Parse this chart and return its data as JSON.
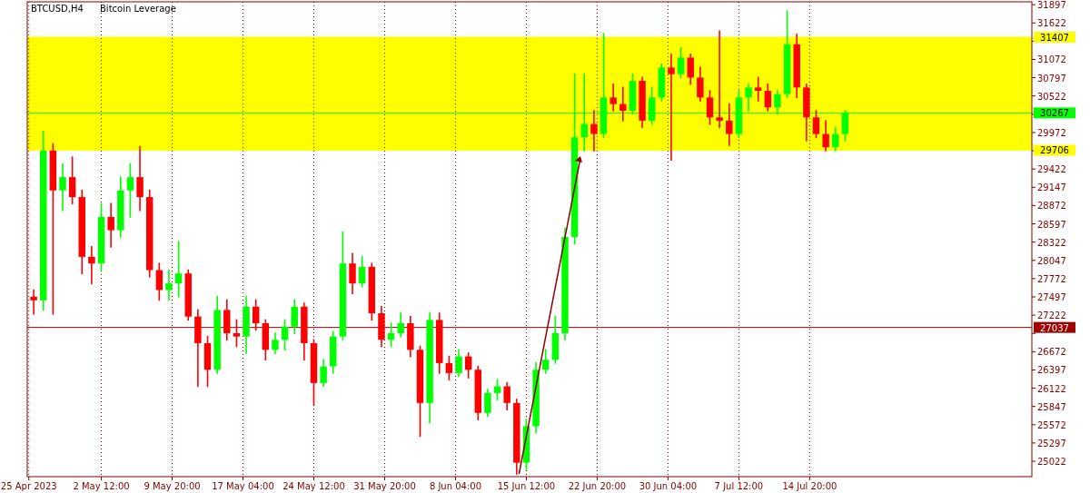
{
  "chart_data": {
    "type": "candlestick",
    "title": "BTCUSD,H4",
    "subtitle": "Bitcoin Leverage",
    "x": [
      "2023-04-25T12:00",
      "2023-04-26T12:00",
      "2023-04-27T12:00",
      "2023-04-28T12:00",
      "2023-04-29T12:00",
      "2023-04-30T12:00",
      "2023-05-01T12:00",
      "2023-05-02T12:00",
      "2023-05-03T12:00",
      "2023-05-04T12:00",
      "2023-05-05T12:00",
      "2023-05-06T12:00",
      "2023-05-07T12:00",
      "2023-05-08T12:00",
      "2023-05-09T12:00",
      "2023-05-10T12:00",
      "2023-05-11T12:00",
      "2023-05-12T12:00",
      "2023-05-13T12:00",
      "2023-05-14T12:00",
      "2023-05-15T12:00",
      "2023-05-16T12:00",
      "2023-05-17T12:00",
      "2023-05-18T12:00",
      "2023-05-19T12:00",
      "2023-05-20T12:00",
      "2023-05-21T12:00",
      "2023-05-22T12:00",
      "2023-05-23T12:00",
      "2023-05-24T12:00",
      "2023-05-25T12:00",
      "2023-05-26T12:00",
      "2023-05-27T12:00",
      "2023-05-28T12:00",
      "2023-05-29T12:00",
      "2023-05-30T12:00",
      "2023-05-31T12:00",
      "2023-06-01T12:00",
      "2023-06-02T12:00",
      "2023-06-03T12:00",
      "2023-06-04T12:00",
      "2023-06-05T12:00",
      "2023-06-06T12:00",
      "2023-06-07T12:00",
      "2023-06-08T12:00",
      "2023-06-09T12:00",
      "2023-06-10T12:00",
      "2023-06-11T12:00",
      "2023-06-12T12:00",
      "2023-06-13T12:00",
      "2023-06-14T12:00",
      "2023-06-15T12:00",
      "2023-06-16T12:00",
      "2023-06-17T12:00",
      "2023-06-18T12:00",
      "2023-06-19T12:00",
      "2023-06-20T12:00",
      "2023-06-21T12:00",
      "2023-06-22T12:00",
      "2023-06-23T12:00",
      "2023-06-24T12:00",
      "2023-06-25T12:00",
      "2023-06-26T12:00",
      "2023-06-27T12:00",
      "2023-06-28T12:00",
      "2023-06-29T12:00",
      "2023-06-30T12:00",
      "2023-07-01T12:00",
      "2023-07-02T12:00",
      "2023-07-03T12:00",
      "2023-07-04T12:00",
      "2023-07-05T12:00",
      "2023-07-06T12:00",
      "2023-07-07T12:00",
      "2023-07-08T12:00",
      "2023-07-09T12:00",
      "2023-07-10T12:00",
      "2023-07-11T12:00",
      "2023-07-12T12:00",
      "2023-07-13T12:00",
      "2023-07-14T12:00",
      "2023-07-15T12:00",
      "2023-07-16T12:00",
      "2023-07-17T12:00",
      "2023-07-18T12:00"
    ],
    "ohlc": [
      [
        27500,
        27600,
        27240,
        27445
      ],
      [
        27445,
        29990,
        27300,
        29700
      ],
      [
        29700,
        29800,
        27240,
        29100
      ],
      [
        29100,
        29500,
        28800,
        29300
      ],
      [
        29300,
        29600,
        28900,
        29000
      ],
      [
        29000,
        29100,
        27850,
        28100
      ],
      [
        28100,
        28250,
        27700,
        28000
      ],
      [
        28000,
        28900,
        27900,
        28700
      ],
      [
        28700,
        28900,
        28250,
        28500
      ],
      [
        28500,
        29300,
        28400,
        29100
      ],
      [
        29100,
        29500,
        28700,
        29300
      ],
      [
        29300,
        29760,
        28800,
        29000
      ],
      [
        29000,
        29100,
        27800,
        27900
      ],
      [
        27900,
        28000,
        27450,
        27600
      ],
      [
        27600,
        27900,
        27450,
        27700
      ],
      [
        27700,
        28330,
        27500,
        27850
      ],
      [
        27850,
        27900,
        27150,
        27200
      ],
      [
        27200,
        27300,
        26150,
        26800
      ],
      [
        26800,
        26900,
        26150,
        26400
      ],
      [
        26400,
        27500,
        26350,
        27300
      ],
      [
        27300,
        27450,
        26850,
        26950
      ],
      [
        26950,
        27150,
        26750,
        26900
      ],
      [
        26900,
        27500,
        26650,
        27350
      ],
      [
        27350,
        27450,
        27000,
        27100
      ],
      [
        27100,
        27150,
        26550,
        26700
      ],
      [
        26700,
        26950,
        26650,
        26850
      ],
      [
        26850,
        27150,
        26700,
        27050
      ],
      [
        27050,
        27450,
        26950,
        27350
      ],
      [
        27350,
        27400,
        26550,
        26800
      ],
      [
        26800,
        26850,
        25880,
        26200
      ],
      [
        26200,
        26550,
        26150,
        26450
      ],
      [
        26450,
        26970,
        26350,
        26900
      ],
      [
        26900,
        28470,
        26850,
        28000
      ],
      [
        28000,
        28150,
        27550,
        27700
      ],
      [
        27700,
        28100,
        27650,
        27950
      ],
      [
        27950,
        28000,
        27150,
        27250
      ],
      [
        27250,
        27350,
        26750,
        26850
      ],
      [
        26850,
        27100,
        26750,
        26950
      ],
      [
        26950,
        27250,
        26900,
        27100
      ],
      [
        27100,
        27200,
        26600,
        26700
      ],
      [
        26700,
        26750,
        25400,
        25900
      ],
      [
        25900,
        27250,
        25600,
        27150
      ],
      [
        27150,
        27250,
        26350,
        26500
      ],
      [
        26500,
        26600,
        26250,
        26350
      ],
      [
        26350,
        26700,
        26300,
        26600
      ],
      [
        26600,
        26650,
        26280,
        26400
      ],
      [
        26400,
        26450,
        25650,
        25750
      ],
      [
        25750,
        26100,
        25700,
        26050
      ],
      [
        26050,
        26250,
        25950,
        26150
      ],
      [
        26150,
        26200,
        25800,
        25900
      ],
      [
        25900,
        25950,
        24830,
        25000
      ],
      [
        25000,
        25650,
        24900,
        25550
      ],
      [
        25550,
        26500,
        25450,
        26400
      ],
      [
        26400,
        26700,
        26350,
        26550
      ],
      [
        26550,
        27200,
        26500,
        26950
      ],
      [
        26950,
        28530,
        26850,
        28400
      ],
      [
        28400,
        30850,
        28300,
        29900
      ],
      [
        29900,
        30850,
        29700,
        30100
      ],
      [
        30100,
        30300,
        29700,
        29950
      ],
      [
        29950,
        31460,
        29900,
        30500
      ],
      [
        30500,
        30700,
        30300,
        30400
      ],
      [
        30400,
        30650,
        30150,
        30300
      ],
      [
        30300,
        30850,
        30250,
        30750
      ],
      [
        30750,
        30800,
        30050,
        30150
      ],
      [
        30150,
        30650,
        30100,
        30500
      ],
      [
        30500,
        31000,
        30450,
        30950
      ],
      [
        30950,
        31150,
        29560,
        30850
      ],
      [
        30850,
        31250,
        30800,
        31100
      ],
      [
        31100,
        31150,
        30700,
        30800
      ],
      [
        30800,
        30950,
        30450,
        30500
      ],
      [
        30500,
        30600,
        30100,
        30200
      ],
      [
        30200,
        31500,
        30050,
        30150
      ],
      [
        30150,
        30400,
        29780,
        29950
      ],
      [
        29950,
        30600,
        29900,
        30500
      ],
      [
        30500,
        30700,
        30300,
        30650
      ],
      [
        30650,
        30800,
        30450,
        30600
      ],
      [
        30600,
        30700,
        30300,
        30350
      ],
      [
        30350,
        30600,
        30250,
        30550
      ],
      [
        30550,
        31800,
        30500,
        31300
      ],
      [
        31300,
        31450,
        30500,
        30650
      ],
      [
        30650,
        30700,
        29850,
        30200
      ],
      [
        30200,
        30300,
        29900,
        29950
      ],
      [
        29950,
        30150,
        29700,
        29750
      ],
      [
        29750,
        30050,
        29700,
        29950
      ],
      [
        29950,
        30300,
        29850,
        30267
      ]
    ],
    "xlim": [
      "2023-04-24T20:00",
      "2023-08-06T20:00"
    ],
    "xticks": [
      {
        "value": "2023-04-25T00:00",
        "label": "25 Apr 2023"
      },
      {
        "value": "2023-05-02T12:00",
        "label": "2 May 12:00"
      },
      {
        "value": "2023-05-09T20:00",
        "label": "9 May 20:00"
      },
      {
        "value": "2023-05-17T04:00",
        "label": "17 May 04:00"
      },
      {
        "value": "2023-05-24T12:00",
        "label": "24 May 12:00"
      },
      {
        "value": "2023-05-31T20:00",
        "label": "31 May 20:00"
      },
      {
        "value": "2023-06-08T04:00",
        "label": "8 Jun 04:00"
      },
      {
        "value": "2023-06-15T12:00",
        "label": "15 Jun 12:00"
      },
      {
        "value": "2023-06-22T20:00",
        "label": "22 Jun 20:00"
      },
      {
        "value": "2023-06-30T04:00",
        "label": "30 Jun 04:00"
      },
      {
        "value": "2023-07-07T12:00",
        "label": "7 Jul 12:00"
      },
      {
        "value": "2023-07-14T20:00",
        "label": "14 Jul 20:00"
      }
    ],
    "ylim": [
      24790,
      31940
    ],
    "yticks": [
      25022,
      25297,
      25572,
      25847,
      26122,
      26397,
      26672,
      {
        "value": 26947,
        "label": null
      },
      27222,
      27497,
      27772,
      28047,
      28322,
      28597,
      28872,
      29147,
      29422,
      {
        "value": 29697,
        "label": null
      },
      29972,
      {
        "value": 30247,
        "label": null
      },
      30522,
      30797,
      31072,
      {
        "value": 31347,
        "label": null
      },
      31622,
      31897
    ],
    "grid": "x",
    "bands": [
      {
        "axis": "y",
        "from": 29706,
        "to": 31407,
        "color": "#ffff00"
      }
    ],
    "ref_lines": [
      {
        "axis": "y",
        "value": 27037,
        "label": "27037",
        "color": "#a00000"
      },
      {
        "axis": "y",
        "value": 30267,
        "label": "30267",
        "color": "#00ff00"
      },
      {
        "axis": "y",
        "value": 31407,
        "label": "31407",
        "color": "#ffff00"
      },
      {
        "axis": "y",
        "value": 29706,
        "label": "29706",
        "color": "#ffff00"
      }
    ]
  }
}
